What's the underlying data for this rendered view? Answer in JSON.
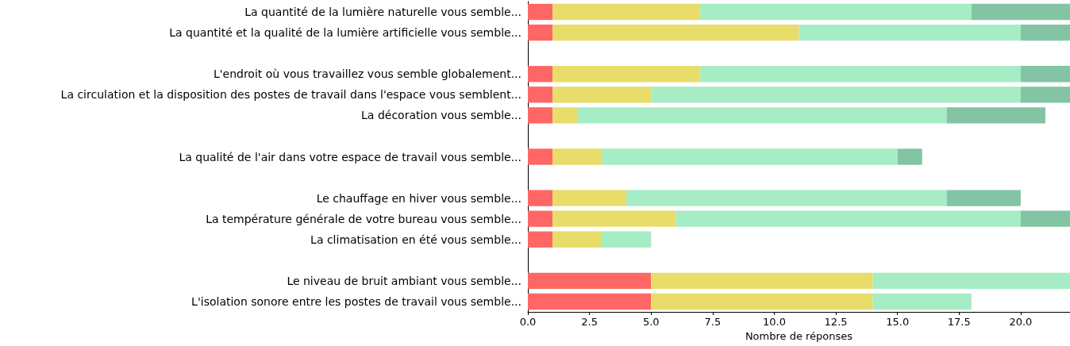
{
  "chart_data": {
    "type": "bar",
    "orientation": "horizontal",
    "stacked": true,
    "xlabel": "Nombre de réponses",
    "categories": [
      "La quantité de la lumière naturelle vous semble...",
      "La quantité et la qualité de la lumière artificielle vous semble...",
      null,
      "L'endroit où vous travaillez vous semble globalement...",
      "La circulation et la disposition des postes de travail dans l'espace vous semblent...",
      "La décoration vous semble...",
      null,
      "La qualité de l'air dans votre espace de travail vous semble...",
      null,
      "Le chauffage en hiver vous semble...",
      "La température générale de votre bureau vous semble...",
      "La climatisation en été vous semble...",
      null,
      "Le niveau de bruit ambiant vous semble...",
      "L'isolation sonore entre les postes de travail vous semble..."
    ],
    "series": [
      {
        "color": "#ff6666",
        "values": [
          1,
          1,
          null,
          1,
          1,
          1,
          null,
          1,
          null,
          1,
          1,
          1,
          null,
          5,
          5
        ]
      },
      {
        "color": "#e8dc6a",
        "values": [
          6,
          10,
          null,
          6,
          4,
          1,
          null,
          2,
          null,
          3,
          5,
          2,
          null,
          9,
          9
        ]
      },
      {
        "color": "#a6ecc4",
        "values": [
          11,
          9,
          null,
          13,
          15,
          15,
          null,
          12,
          null,
          13,
          14,
          2,
          null,
          8,
          4
        ]
      },
      {
        "color": "#82c4a4",
        "values": [
          4,
          2,
          null,
          2,
          2,
          4,
          null,
          1,
          null,
          3,
          2,
          null,
          null,
          null,
          null
        ]
      }
    ],
    "xlim": [
      0,
      22
    ],
    "xticks": [
      {
        "value": 0,
        "label": "0.0"
      },
      {
        "value": 2.5,
        "label": "2.5"
      },
      {
        "value": 5,
        "label": "5.0"
      },
      {
        "value": 7.5,
        "label": "7.5"
      },
      {
        "value": 10,
        "label": "10.0"
      },
      {
        "value": 12.5,
        "label": "12.5"
      },
      {
        "value": 15,
        "label": "15.0"
      },
      {
        "value": 17.5,
        "label": "17.5"
      },
      {
        "value": 20,
        "label": "20.0"
      }
    ],
    "grid": false
  }
}
